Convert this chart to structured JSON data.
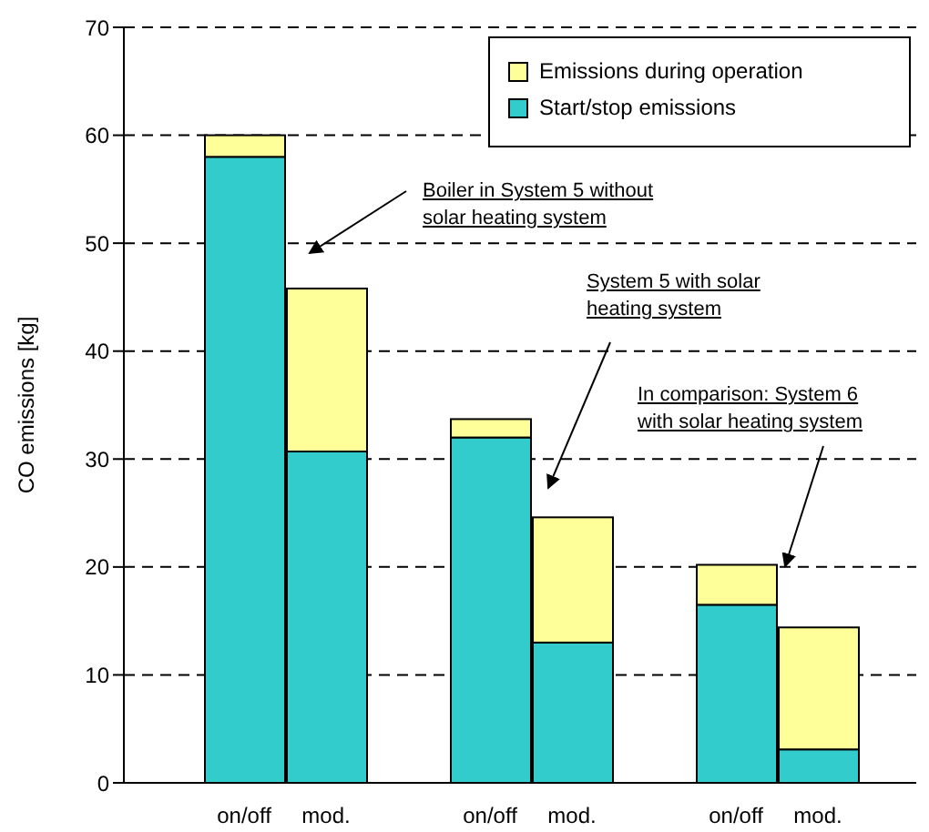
{
  "chart_data": {
    "type": "bar",
    "stacked": true,
    "categories": [
      "on/off",
      "mod.",
      "on/off",
      "mod.",
      "on/off",
      "mod."
    ],
    "series": [
      {
        "name": "Start/stop emissions",
        "color": "#33cccc",
        "values": [
          58,
          30.7,
          32,
          13,
          16.5,
          3.1
        ]
      },
      {
        "name": "Emissions during operation",
        "color": "#ffff99",
        "values": [
          2,
          15.1,
          1.7,
          11.6,
          3.7,
          11.3
        ]
      }
    ],
    "ylabel": "CO emissions [kg]",
    "ylim": [
      0,
      70
    ],
    "yticks": [
      0,
      10,
      20,
      30,
      40,
      50,
      60,
      70
    ],
    "grid": "y",
    "legend": "top right",
    "annotations": [
      "Boiler in System 5 without solar heating system",
      "System 5 with solar heating system",
      "In comparison: System 6 with solar heating system"
    ]
  }
}
